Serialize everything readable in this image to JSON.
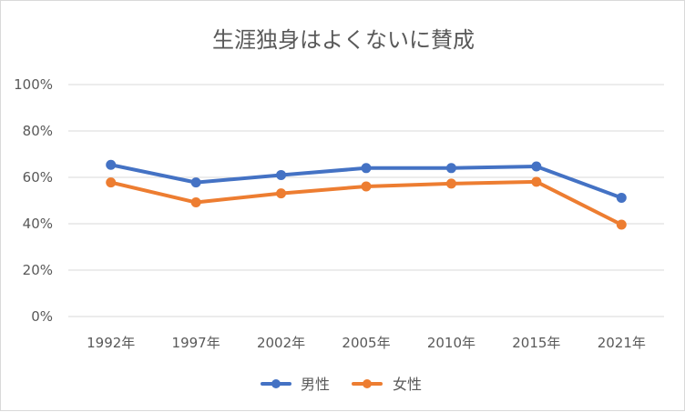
{
  "chart_data": {
    "type": "line",
    "title": "生涯独身はよくないに賛成",
    "categories": [
      "1992年",
      "1997年",
      "2002年",
      "2005年",
      "2010年",
      "2015年",
      "2021年"
    ],
    "series": [
      {
        "name": "男性",
        "color": "#4472c4",
        "values": [
          65.4,
          57.8,
          61.0,
          64.0,
          64.0,
          64.7,
          51.2
        ]
      },
      {
        "name": "女性",
        "color": "#ed7d31",
        "values": [
          57.8,
          49.2,
          53.1,
          56.1,
          57.3,
          58.1,
          39.6
        ]
      }
    ],
    "yticks": [
      "0%",
      "20%",
      "40%",
      "60%",
      "80%",
      "100%"
    ],
    "ylim": [
      0,
      100
    ],
    "xlabel": "",
    "ylabel": "",
    "grid": true,
    "legend": "bottom"
  }
}
